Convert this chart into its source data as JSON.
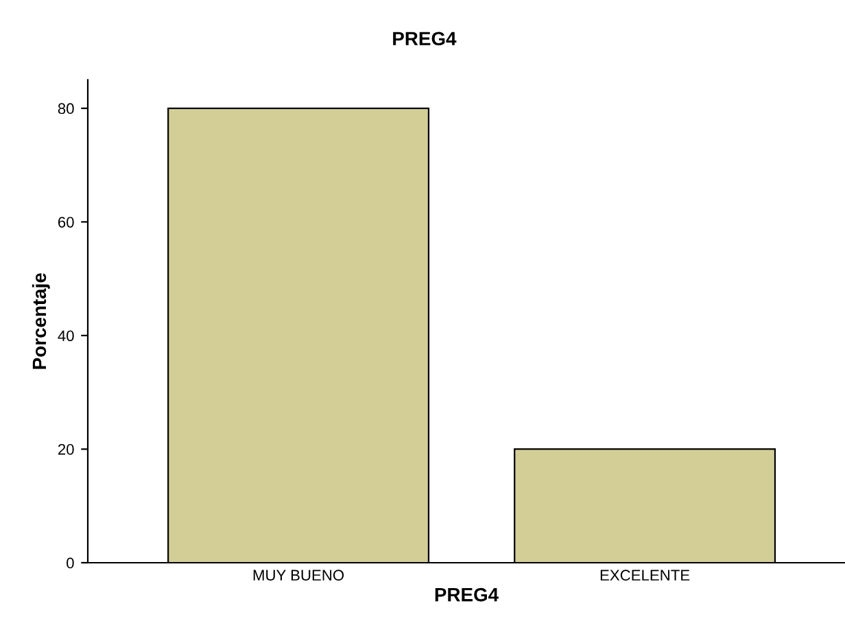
{
  "chart_data": {
    "type": "bar",
    "title": "PREG4",
    "xlabel": "PREG4",
    "ylabel": "Porcentaje",
    "categories": [
      "MUY BUENO",
      "EXCELENTE"
    ],
    "values": [
      80,
      20
    ],
    "color": "#d3cd96",
    "ylim": [
      0,
      85
    ],
    "yticks": [
      0,
      20,
      40,
      60,
      80
    ],
    "grid": false,
    "legend": false
  }
}
